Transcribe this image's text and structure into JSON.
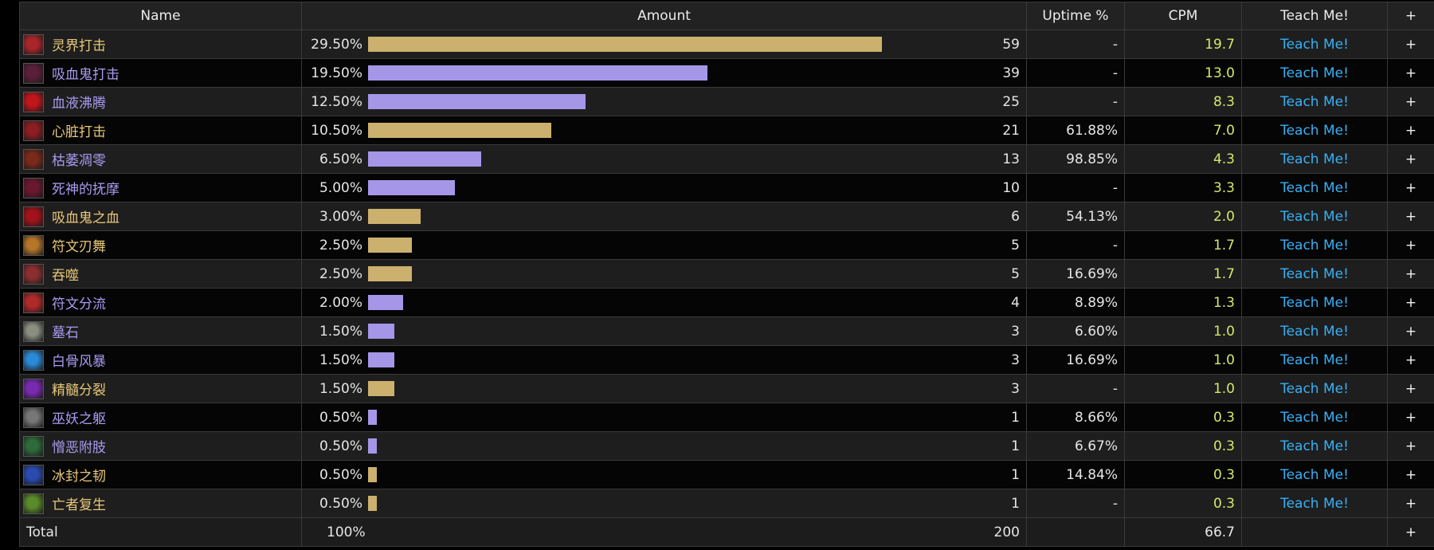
{
  "header": {
    "name": "Name",
    "amount": "Amount",
    "uptime": "Uptime %",
    "cpm": "CPM",
    "teach": "Teach Me!",
    "plus": "+"
  },
  "colors": {
    "gold": "#e8c77a",
    "purple": "#a99bf0",
    "gold_bar": "#ccb06e",
    "purple_bar": "#a596e8",
    "cpm": "#d4e86a",
    "link": "#38b0f5"
  },
  "rows": [
    {
      "name": "灵界打击",
      "pct": "29.50%",
      "fraction": 0.295,
      "count": "59",
      "uptime": "-",
      "cpm": "19.7",
      "teach": "Teach Me!",
      "plus": "+",
      "tone": "gold",
      "icon": "death-strike-icon",
      "iconColor": "#a8262a"
    },
    {
      "name": "吸血鬼打击",
      "pct": "19.50%",
      "fraction": 0.195,
      "count": "39",
      "uptime": "-",
      "cpm": "13.0",
      "teach": "Teach Me!",
      "plus": "+",
      "tone": "purple",
      "icon": "vampiric-strike-icon",
      "iconColor": "#5a1f3a"
    },
    {
      "name": "血液沸腾",
      "pct": "12.50%",
      "fraction": 0.125,
      "count": "25",
      "uptime": "-",
      "cpm": "8.3",
      "teach": "Teach Me!",
      "plus": "+",
      "tone": "purple",
      "icon": "blood-boil-icon",
      "iconColor": "#c0161c"
    },
    {
      "name": "心脏打击",
      "pct": "10.50%",
      "fraction": 0.105,
      "count": "21",
      "uptime": "61.88%",
      "cpm": "7.0",
      "teach": "Teach Me!",
      "plus": "+",
      "tone": "gold",
      "icon": "heart-strike-icon",
      "iconColor": "#8c1d22"
    },
    {
      "name": "枯萎凋零",
      "pct": "6.50%",
      "fraction": 0.065,
      "count": "13",
      "uptime": "98.85%",
      "cpm": "4.3",
      "teach": "Teach Me!",
      "plus": "+",
      "tone": "purple",
      "icon": "death-and-decay-icon",
      "iconColor": "#7a2a1a"
    },
    {
      "name": "死神的抚摩",
      "pct": "5.00%",
      "fraction": 0.05,
      "count": "10",
      "uptime": "-",
      "cpm": "3.3",
      "teach": "Teach Me!",
      "plus": "+",
      "tone": "purple",
      "icon": "deaths-caress-icon",
      "iconColor": "#6a1830"
    },
    {
      "name": "吸血鬼之血",
      "pct": "3.00%",
      "fraction": 0.03,
      "count": "6",
      "uptime": "54.13%",
      "cpm": "2.0",
      "teach": "Teach Me!",
      "plus": "+",
      "tone": "gold",
      "icon": "vampiric-blood-icon",
      "iconColor": "#a2121a"
    },
    {
      "name": "符文刃舞",
      "pct": "2.50%",
      "fraction": 0.025,
      "count": "5",
      "uptime": "-",
      "cpm": "1.7",
      "teach": "Teach Me!",
      "plus": "+",
      "tone": "gold",
      "icon": "dancing-rune-weapon-icon",
      "iconColor": "#b5762a"
    },
    {
      "name": "吞噬",
      "pct": "2.50%",
      "fraction": 0.025,
      "count": "5",
      "uptime": "16.69%",
      "cpm": "1.7",
      "teach": "Teach Me!",
      "plus": "+",
      "tone": "gold",
      "icon": "consumption-icon",
      "iconColor": "#8a2e30"
    },
    {
      "name": "符文分流",
      "pct": "2.00%",
      "fraction": 0.02,
      "count": "4",
      "uptime": "8.89%",
      "cpm": "1.3",
      "teach": "Teach Me!",
      "plus": "+",
      "tone": "purple",
      "icon": "rune-tap-icon",
      "iconColor": "#b02a2a"
    },
    {
      "name": "墓石",
      "pct": "1.50%",
      "fraction": 0.015,
      "count": "3",
      "uptime": "6.60%",
      "cpm": "1.0",
      "teach": "Teach Me!",
      "plus": "+",
      "tone": "purple",
      "icon": "tombstone-icon",
      "iconColor": "#8a8f82"
    },
    {
      "name": "白骨风暴",
      "pct": "1.50%",
      "fraction": 0.015,
      "count": "3",
      "uptime": "16.69%",
      "cpm": "1.0",
      "teach": "Teach Me!",
      "plus": "+",
      "tone": "purple",
      "icon": "bonestorm-icon",
      "iconColor": "#2a8ad6"
    },
    {
      "name": "精髓分裂",
      "pct": "1.50%",
      "fraction": 0.015,
      "count": "3",
      "uptime": "-",
      "cpm": "1.0",
      "teach": "Teach Me!",
      "plus": "+",
      "tone": "gold",
      "icon": "marrowrend-icon",
      "iconColor": "#7a2ab0"
    },
    {
      "name": "巫妖之躯",
      "pct": "0.50%",
      "fraction": 0.005,
      "count": "1",
      "uptime": "8.66%",
      "cpm": "0.3",
      "teach": "Teach Me!",
      "plus": "+",
      "tone": "purple",
      "icon": "lichborne-icon",
      "iconColor": "#777777"
    },
    {
      "name": "憎恶附肢",
      "pct": "0.50%",
      "fraction": 0.005,
      "count": "1",
      "uptime": "6.67%",
      "cpm": "0.3",
      "teach": "Teach Me!",
      "plus": "+",
      "tone": "purple",
      "icon": "abomination-limb-icon",
      "iconColor": "#2e6a3a"
    },
    {
      "name": "冰封之韧",
      "pct": "0.50%",
      "fraction": 0.005,
      "count": "1",
      "uptime": "14.84%",
      "cpm": "0.3",
      "teach": "Teach Me!",
      "plus": "+",
      "tone": "gold",
      "icon": "icebound-fortitude-icon",
      "iconColor": "#2a4ab0"
    },
    {
      "name": "亡者复生",
      "pct": "0.50%",
      "fraction": 0.005,
      "count": "1",
      "uptime": "-",
      "cpm": "0.3",
      "teach": "Teach Me!",
      "plus": "+",
      "tone": "gold",
      "icon": "raise-dead-icon",
      "iconColor": "#5a8a2a"
    }
  ],
  "bar_max_fraction": 0.295,
  "footer": {
    "label": "Total",
    "pct": "100%",
    "count": "200",
    "cpm": "66.7",
    "plus": "+"
  }
}
